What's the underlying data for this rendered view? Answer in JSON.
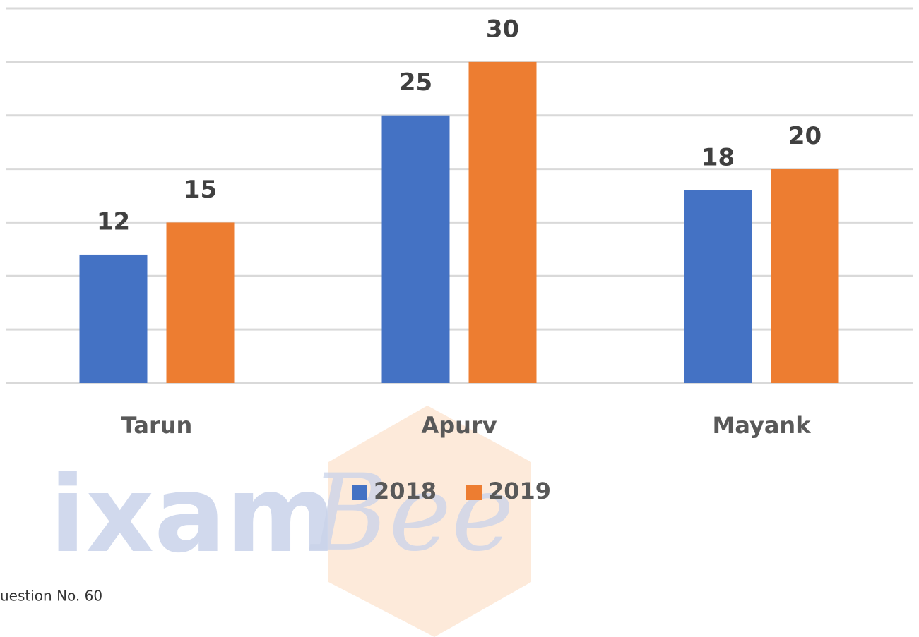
{
  "chart_data": {
    "type": "bar",
    "categories": [
      "Tarun",
      "Apurv",
      "Mayank"
    ],
    "series": [
      {
        "name": "2018",
        "color": "#4472c4",
        "values": [
          12,
          25,
          18
        ]
      },
      {
        "name": "2019",
        "color": "#ed7d31",
        "values": [
          15,
          30,
          20
        ]
      }
    ],
    "ylim": [
      0,
      35
    ],
    "yticks": [
      0,
      5,
      10,
      15,
      20,
      25,
      30,
      35
    ],
    "grid": true,
    "legend": "bottom",
    "annotations": [
      "uestion No. 60"
    ],
    "watermark": [
      "ixam",
      "Bee"
    ]
  }
}
